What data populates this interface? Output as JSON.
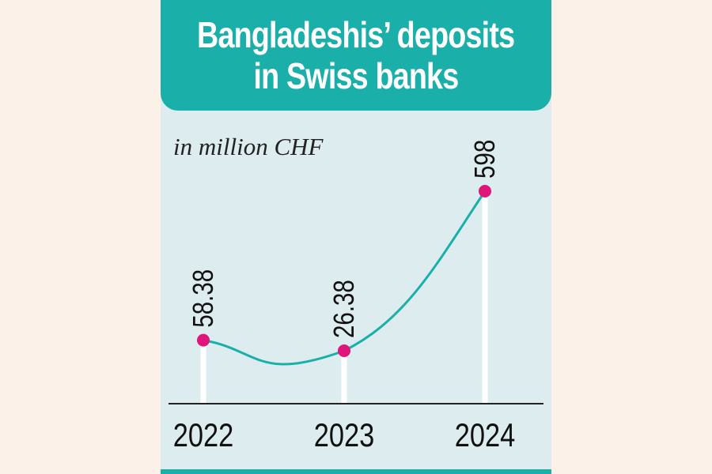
{
  "title": {
    "line1": "Bangladeshis’ deposits",
    "line2": "in Swiss banks"
  },
  "unit_label": "in million CHF",
  "colors": {
    "accent": "#1bafa9",
    "panel": "#dcecef",
    "marker": "#e0157a",
    "background": "#fbf1e9"
  },
  "chart_data": {
    "type": "line",
    "categories": [
      "2022",
      "2023",
      "2024"
    ],
    "values": [
      58.38,
      26.38,
      598
    ],
    "data_labels": [
      "58.38",
      "26.38",
      "598"
    ],
    "curve": "smooth",
    "marker": "circle",
    "grid": false,
    "legend": "none"
  }
}
